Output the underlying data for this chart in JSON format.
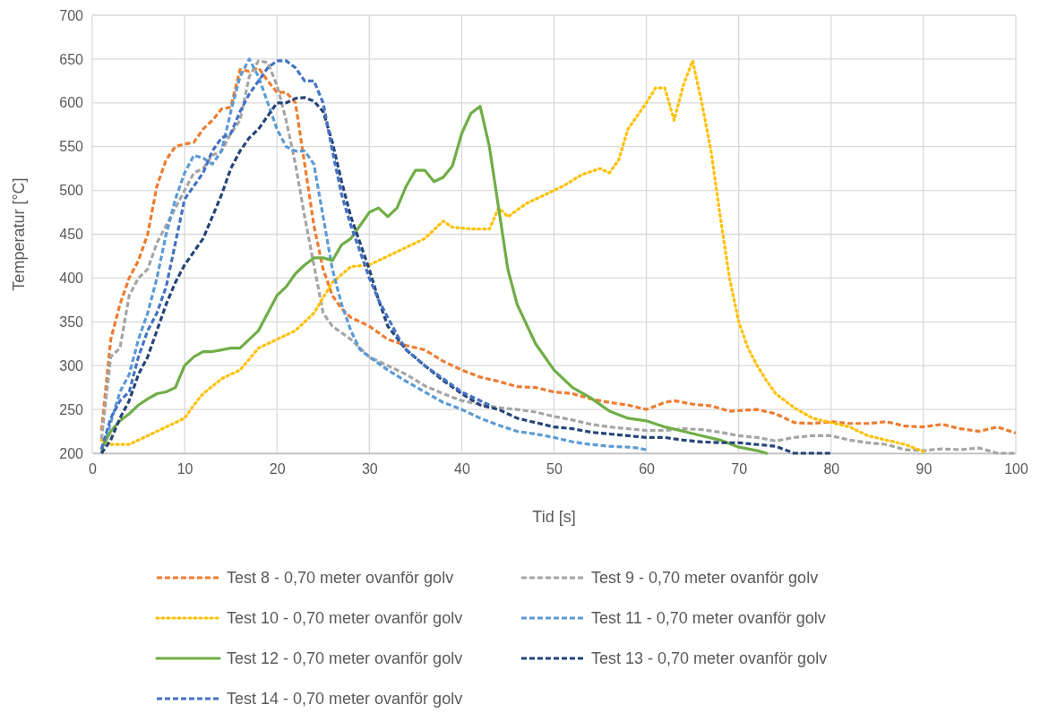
{
  "chart_data": {
    "type": "line",
    "xlabel": "Tid [s]",
    "ylabel": "Temperatur [°C]",
    "xlim": [
      0,
      100
    ],
    "xticks": [
      0,
      10,
      20,
      30,
      40,
      50,
      60,
      70,
      80,
      90,
      100
    ],
    "ylim": [
      200,
      700
    ],
    "yticks": [
      200,
      250,
      300,
      350,
      400,
      450,
      500,
      550,
      600,
      650,
      700
    ],
    "grid": true,
    "legend": "bottom",
    "marker": "none",
    "series": [
      {
        "name": "Test 8 - 0,70 meter ovanför golv",
        "color": "#ed7d31",
        "line_style": "dashed",
        "x": [
          1,
          2,
          3,
          4,
          5,
          6,
          7,
          8,
          9,
          10,
          11,
          12,
          13,
          14,
          15,
          16,
          17,
          18,
          19,
          20,
          21,
          22,
          23,
          24,
          25,
          26,
          27,
          28,
          30,
          32,
          34,
          36,
          38,
          40,
          42,
          44,
          46,
          48,
          50,
          52,
          54,
          56,
          58,
          60,
          62,
          63,
          65,
          67,
          69,
          72,
          74,
          76,
          78,
          80,
          82,
          84,
          86,
          88,
          90,
          92,
          94,
          96,
          98,
          100
        ],
        "values": [
          226,
          330,
          370,
          400,
          420,
          450,
          505,
          535,
          550,
          553,
          555,
          570,
          580,
          593,
          595,
          638,
          636,
          640,
          625,
          612,
          612,
          600,
          530,
          460,
          410,
          380,
          365,
          355,
          345,
          330,
          323,
          318,
          305,
          295,
          287,
          282,
          276,
          275,
          270,
          268,
          262,
          258,
          255,
          250,
          258,
          260,
          256,
          254,
          248,
          250,
          245,
          235,
          234,
          236,
          234,
          234,
          236,
          231,
          230,
          233,
          228,
          225,
          230,
          223
        ]
      },
      {
        "name": "Test 9 - 0,70 meter ovanför golv",
        "color": "#a5a5a5",
        "line_style": "dashed",
        "x": [
          1,
          2,
          3,
          4,
          5,
          6,
          7,
          8,
          9,
          10,
          11,
          12,
          13,
          14,
          15,
          16,
          17,
          18,
          19,
          20,
          21,
          22,
          23,
          24,
          25,
          26,
          28,
          30,
          32,
          34,
          36,
          38,
          40,
          42,
          44,
          46,
          48,
          50,
          52,
          54,
          56,
          58,
          60,
          62,
          64,
          66,
          68,
          70,
          72,
          74,
          76,
          78,
          80,
          82,
          84,
          86,
          88,
          90,
          92,
          94,
          96,
          98,
          100
        ],
        "values": [
          216,
          310,
          320,
          380,
          400,
          410,
          440,
          460,
          480,
          500,
          520,
          525,
          540,
          545,
          565,
          580,
          630,
          648,
          646,
          620,
          580,
          530,
          470,
          415,
          360,
          345,
          330,
          310,
          300,
          290,
          277,
          268,
          260,
          256,
          252,
          250,
          247,
          242,
          238,
          233,
          230,
          228,
          226,
          226,
          228,
          227,
          224,
          220,
          218,
          214,
          218,
          220,
          220,
          215,
          212,
          210,
          204,
          203,
          205,
          204,
          206,
          200,
          200
        ]
      },
      {
        "name": "Test 10 - 0,70 meter ovanför golv",
        "color": "#ffc000",
        "line_style": "dotted",
        "x": [
          1,
          2,
          4,
          6,
          8,
          10,
          11,
          12,
          14,
          16,
          18,
          20,
          22,
          24,
          26,
          28,
          30,
          32,
          34,
          36,
          38,
          39,
          41,
          43,
          44,
          45,
          47,
          49,
          51,
          53,
          55,
          56,
          57,
          58,
          59,
          60,
          61,
          62,
          63,
          64,
          65,
          66,
          67,
          68,
          69,
          70,
          71,
          72,
          73,
          74,
          76,
          78,
          80,
          82,
          84,
          86,
          88,
          90
        ],
        "values": [
          215,
          210,
          210,
          220,
          230,
          240,
          255,
          268,
          285,
          295,
          320,
          330,
          340,
          360,
          395,
          413,
          415,
          425,
          435,
          445,
          465,
          458,
          456,
          456,
          480,
          470,
          485,
          495,
          505,
          518,
          525,
          520,
          535,
          570,
          585,
          600,
          617,
          617,
          580,
          620,
          648,
          600,
          545,
          470,
          400,
          350,
          320,
          300,
          283,
          268,
          252,
          240,
          235,
          230,
          220,
          215,
          210,
          202
        ]
      },
      {
        "name": "Test 11 - 0,70 meter ovanför golv",
        "color": "#5b9bd5",
        "line_style": "dashed",
        "x": [
          1,
          2,
          3,
          4,
          5,
          6,
          7,
          8,
          9,
          10,
          11,
          12,
          13,
          14,
          15,
          16,
          17,
          18,
          19,
          20,
          21,
          22,
          23,
          24,
          25,
          26,
          27,
          28,
          29,
          30,
          32,
          34,
          36,
          38,
          40,
          42,
          44,
          46,
          48,
          50,
          52,
          54,
          56,
          58,
          59,
          60
        ],
        "values": [
          200,
          235,
          270,
          290,
          330,
          360,
          400,
          450,
          490,
          520,
          540,
          537,
          530,
          545,
          590,
          630,
          650,
          630,
          600,
          570,
          550,
          545,
          545,
          530,
          470,
          410,
          370,
          340,
          318,
          310,
          295,
          282,
          270,
          258,
          250,
          240,
          232,
          225,
          222,
          218,
          213,
          210,
          208,
          207,
          206,
          204
        ]
      },
      {
        "name": "Test 12 - 0,70 meter ovanför golv",
        "color": "#70ad47",
        "line_style": "solid",
        "x": [
          1,
          2,
          3,
          4,
          5,
          6,
          7,
          8,
          9,
          10,
          11,
          12,
          13,
          14,
          15,
          16,
          17,
          18,
          19,
          20,
          21,
          22,
          23,
          24,
          25,
          26,
          27,
          28,
          29,
          30,
          31,
          32,
          33,
          34,
          35,
          36,
          37,
          38,
          39,
          40,
          41,
          42,
          43,
          44,
          45,
          46,
          48,
          50,
          52,
          54,
          56,
          58,
          60,
          62,
          64,
          66,
          68,
          70,
          72,
          73
        ],
        "values": [
          205,
          225,
          237,
          245,
          255,
          262,
          268,
          270,
          275,
          300,
          310,
          316,
          316,
          318,
          320,
          320,
          330,
          340,
          360,
          380,
          390,
          405,
          415,
          423,
          423,
          420,
          438,
          445,
          460,
          475,
          480,
          470,
          480,
          505,
          523,
          523,
          510,
          515,
          528,
          565,
          588,
          596,
          550,
          480,
          410,
          370,
          325,
          295,
          275,
          263,
          248,
          240,
          237,
          230,
          225,
          220,
          215,
          207,
          203,
          200
        ]
      },
      {
        "name": "Test 13 - 0,70 meter ovanför golv",
        "color": "#264478",
        "line_style": "dashed",
        "x": [
          1,
          2,
          3,
          4,
          5,
          6,
          7,
          8,
          9,
          10,
          11,
          12,
          13,
          14,
          15,
          16,
          17,
          18,
          19,
          20,
          21,
          22,
          23,
          24,
          25,
          26,
          27,
          28,
          29,
          30,
          31,
          32,
          34,
          36,
          38,
          40,
          42,
          44,
          46,
          48,
          50,
          52,
          54,
          56,
          58,
          60,
          62,
          64,
          66,
          68,
          70,
          72,
          74,
          76,
          78,
          80
        ],
        "values": [
          200,
          215,
          240,
          260,
          290,
          310,
          340,
          370,
          395,
          415,
          430,
          445,
          470,
          495,
          525,
          545,
          560,
          570,
          585,
          600,
          600,
          605,
          606,
          602,
          590,
          555,
          510,
          470,
          440,
          410,
          375,
          345,
          318,
          300,
          283,
          268,
          255,
          250,
          240,
          235,
          230,
          228,
          224,
          222,
          220,
          218,
          218,
          215,
          213,
          212,
          212,
          210,
          208,
          200,
          200,
          200
        ]
      },
      {
        "name": "Test 14 - 0,70 meter ovanför golv",
        "color": "#4472c4",
        "line_style": "dashed",
        "x": [
          1,
          2,
          3,
          4,
          5,
          6,
          7,
          8,
          9,
          10,
          11,
          12,
          13,
          14,
          15,
          16,
          17,
          18,
          19,
          20,
          21,
          22,
          23,
          24,
          25,
          26,
          27,
          28,
          29,
          30,
          31,
          32,
          33,
          34,
          36,
          38,
          40,
          42,
          43
        ],
        "values": [
          205,
          240,
          260,
          270,
          310,
          340,
          360,
          390,
          440,
          490,
          505,
          520,
          545,
          560,
          565,
          590,
          610,
          625,
          640,
          648,
          648,
          640,
          625,
          625,
          600,
          545,
          495,
          460,
          430,
          400,
          375,
          355,
          335,
          318,
          300,
          285,
          270,
          260,
          255
        ]
      }
    ]
  }
}
